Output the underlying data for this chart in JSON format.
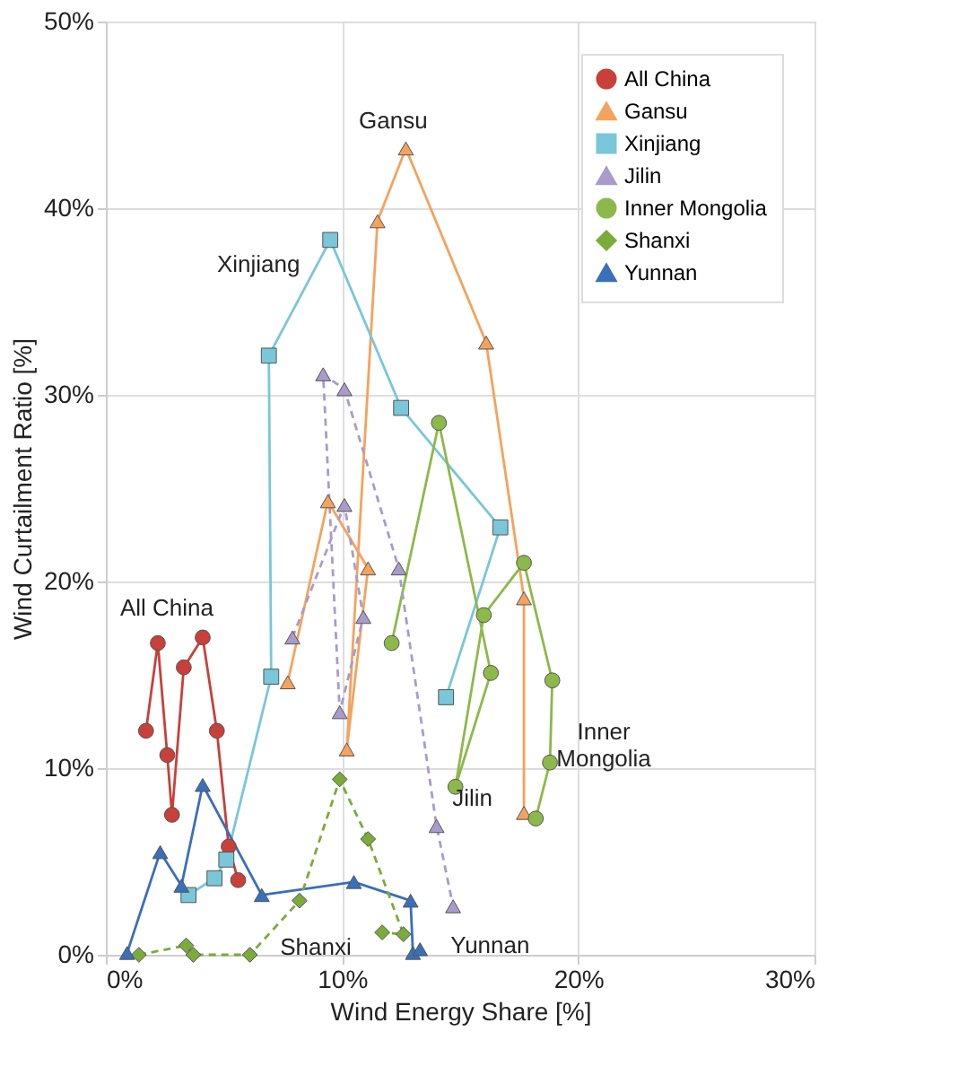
{
  "chart_data": {
    "type": "line",
    "xlabel": "Wind Energy Share [%]",
    "ylabel": "Wind Curtailment Ratio [%]",
    "xlim": [
      0,
      30
    ],
    "ylim": [
      0,
      50
    ],
    "xticks": [
      {
        "value": 0,
        "label": "0%"
      },
      {
        "value": 10,
        "label": "10%"
      },
      {
        "value": 20,
        "label": "20%"
      },
      {
        "value": 30,
        "label": "30%"
      }
    ],
    "yticks": [
      {
        "value": 0,
        "label": "0%"
      },
      {
        "value": 10,
        "label": "10%"
      },
      {
        "value": 20,
        "label": "20%"
      },
      {
        "value": 30,
        "label": "30%"
      },
      {
        "value": 40,
        "label": "40%"
      },
      {
        "value": 50,
        "label": "50%"
      }
    ],
    "grid": true,
    "legend": "top right",
    "series": [
      {
        "name": "All China",
        "color": "#c8403a",
        "marker": "circle",
        "line_style": "solid",
        "x": [
          1.7,
          2.2,
          2.6,
          2.8,
          3.3,
          4.1,
          4.7,
          5.2,
          5.6
        ],
        "values": [
          12.0,
          16.7,
          10.7,
          7.5,
          15.4,
          17.0,
          12.0,
          5.8,
          4.0
        ]
      },
      {
        "name": "Gansu",
        "color": "#f5a25d",
        "marker": "triangle",
        "line_style": "solid",
        "x": [
          7.7,
          9.4,
          11.1,
          10.2,
          11.5,
          12.7,
          16.1,
          17.7,
          17.7
        ],
        "values": [
          14.6,
          24.3,
          20.7,
          11.0,
          39.3,
          43.2,
          32.8,
          19.1,
          7.6
        ]
      },
      {
        "name": "Xinjiang",
        "color": "#79c7d8",
        "marker": "square",
        "line_style": "solid",
        "x": [
          3.5,
          4.6,
          5.1,
          7.0,
          6.9,
          9.5,
          12.5,
          16.7,
          14.4
        ],
        "values": [
          3.2,
          4.1,
          5.1,
          14.9,
          32.1,
          38.3,
          29.3,
          22.9,
          13.8
        ]
      },
      {
        "name": "Jilin",
        "color": "#a99bcb",
        "marker": "triangle",
        "line_style": "dashed",
        "x": [
          7.9,
          10.1,
          10.9,
          9.9,
          9.2,
          10.1,
          12.4,
          14.0,
          14.7
        ],
        "values": [
          17.0,
          24.1,
          18.1,
          13.0,
          31.1,
          30.3,
          20.7,
          6.9,
          2.6
        ]
      },
      {
        "name": "Inner Mongolia",
        "color": "#8db94a",
        "marker": "circle",
        "line_style": "solid",
        "x": [
          12.1,
          14.1,
          16.3,
          14.8,
          16.0,
          17.7,
          18.9,
          18.8,
          18.2
        ],
        "values": [
          16.7,
          28.5,
          15.1,
          9.0,
          18.2,
          21.0,
          14.7,
          10.3,
          7.3
        ]
      },
      {
        "name": "Shanxi",
        "color": "#7aab3b",
        "marker": "diamond",
        "line_style": "dashed",
        "x": [
          1.4,
          3.4,
          3.7,
          6.1,
          8.2,
          9.9,
          11.1,
          12.6,
          11.7
        ],
        "values": [
          0.0,
          0.5,
          0.0,
          0.0,
          2.9,
          9.4,
          6.2,
          1.1,
          1.2
        ]
      },
      {
        "name": "Yunnan",
        "color": "#3a6fba",
        "marker": "triangle",
        "line_style": "solid",
        "x": [
          0.9,
          2.3,
          3.2,
          4.1,
          6.6,
          10.5,
          12.9,
          13.0,
          13.3
        ],
        "values": [
          0.1,
          5.5,
          3.7,
          9.1,
          3.2,
          3.9,
          2.9,
          0.1,
          0.3
        ]
      }
    ]
  }
}
